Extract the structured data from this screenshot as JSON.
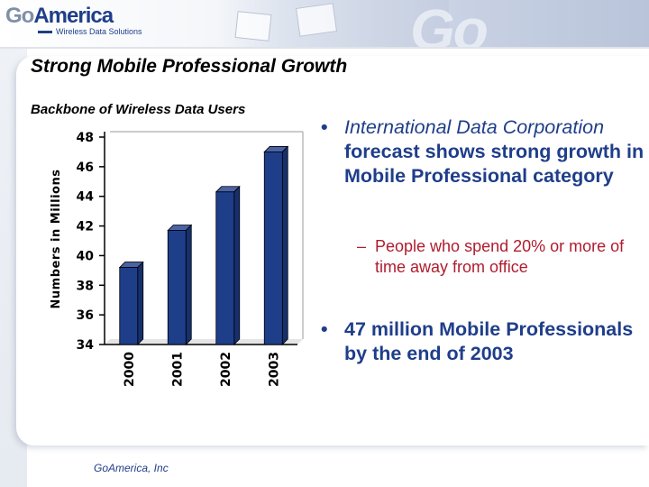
{
  "header": {
    "logo_go": "Go",
    "logo_america": "America",
    "logo_tagline": "Wireless Data Solutions"
  },
  "slide": {
    "title": "Strong Mobile Professional Growth"
  },
  "chart_data": {
    "type": "bar",
    "title": "Backbone of Wireless Data Users",
    "xlabel": "",
    "ylabel": "Numbers in Millions",
    "categories": [
      "2000",
      "2001",
      "2002",
      "2003"
    ],
    "values": [
      39.2,
      41.7,
      44.3,
      47.0
    ],
    "ylim": [
      34,
      48
    ],
    "yticks": [
      "48",
      "46",
      "44",
      "42",
      "40",
      "38",
      "36",
      "34"
    ],
    "grid": false,
    "legend": "none",
    "bar_color": "#1f3e8a",
    "bar_top_color": "#4a62a6"
  },
  "bullets": {
    "b1_italic": "International Data Corporation",
    "b1_bold": " forecast shows strong growth in Mobile Professional category",
    "sub_dash": "–",
    "sub": "People who spend 20% or more of time away from office",
    "b2": "47 million Mobile Professionals by the end of 2003"
  },
  "footer": {
    "company": "GoAmerica, Inc"
  }
}
